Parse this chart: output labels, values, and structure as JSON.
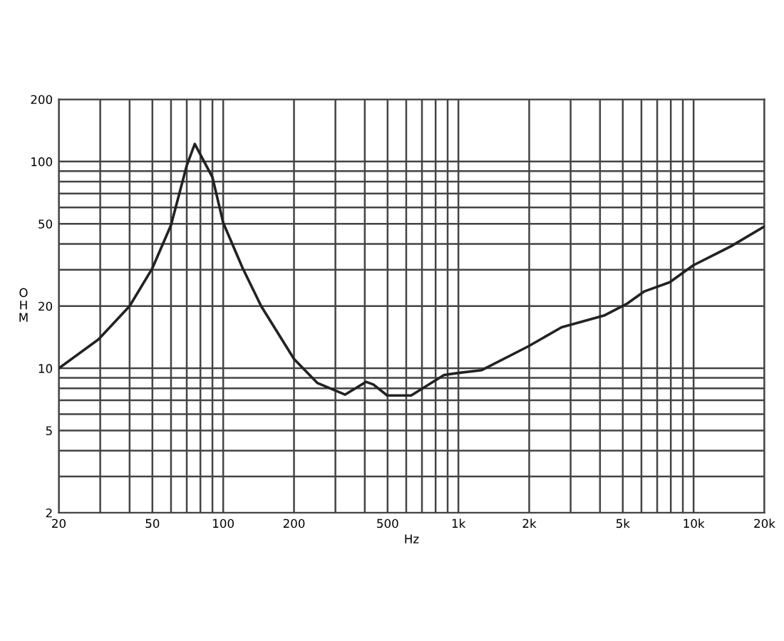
{
  "chart_data": {
    "type": "line",
    "xlabel": "Hz",
    "ylabel": "OHM",
    "log": "xy",
    "grid": true,
    "marker": "none",
    "line_style": "solid",
    "xlim": [
      20,
      20000
    ],
    "ylim": [
      2,
      200
    ],
    "xticks": [
      20,
      {
        "value": 30,
        "label": null
      },
      {
        "value": 40,
        "label": null
      },
      50,
      {
        "value": 60,
        "label": null
      },
      {
        "value": 70,
        "label": null
      },
      {
        "value": 80,
        "label": null
      },
      {
        "value": 90,
        "label": null
      },
      100,
      200,
      {
        "value": 300,
        "label": null
      },
      {
        "value": 400,
        "label": null
      },
      500,
      {
        "value": 600,
        "label": null
      },
      {
        "value": 700,
        "label": null
      },
      {
        "value": 800,
        "label": null
      },
      {
        "value": 900,
        "label": null
      },
      {
        "value": 1000,
        "label": "1k"
      },
      {
        "value": 2000,
        "label": "2k"
      },
      {
        "value": 3000,
        "label": null
      },
      {
        "value": 4000,
        "label": null
      },
      {
        "value": 5000,
        "label": "5k"
      },
      {
        "value": 6000,
        "label": null
      },
      {
        "value": 7000,
        "label": null
      },
      {
        "value": 8000,
        "label": null
      },
      {
        "value": 9000,
        "label": null
      },
      {
        "value": 10000,
        "label": "10k"
      },
      {
        "value": 20000,
        "label": "20k"
      }
    ],
    "yticks": [
      2,
      {
        "value": 3,
        "label": null
      },
      {
        "value": 4,
        "label": null
      },
      5,
      {
        "value": 6,
        "label": null
      },
      {
        "value": 7,
        "label": null
      },
      {
        "value": 8,
        "label": null
      },
      {
        "value": 9,
        "label": null
      },
      10,
      20,
      {
        "value": 30,
        "label": null
      },
      {
        "value": 40,
        "label": null
      },
      50,
      {
        "value": 60,
        "label": null
      },
      {
        "value": 70,
        "label": null
      },
      {
        "value": 80,
        "label": null
      },
      {
        "value": 90,
        "label": null
      },
      100,
      200
    ],
    "series": [
      {
        "color": "#222222",
        "x": [
          20,
          29.5,
          40,
          50,
          60,
          70,
          75.7,
          90,
          100,
          121,
          145,
          200,
          251,
          330,
          405,
          435,
          498,
          630,
          869,
          1000,
          1257,
          1990,
          2747,
          4160,
          5230,
          6150,
          7920,
          9970,
          14400,
          20000
        ],
        "values": [
          10,
          13.8,
          20,
          30.5,
          49.3,
          95.8,
          121.7,
          84,
          50.6,
          30.5,
          20,
          11.1,
          8.5,
          7.46,
          8.6,
          8.35,
          7.39,
          7.39,
          9.28,
          9.5,
          9.8,
          12.8,
          15.8,
          18.0,
          20.6,
          23.5,
          26.1,
          31.5,
          38.9,
          48.6
        ]
      }
    ]
  }
}
